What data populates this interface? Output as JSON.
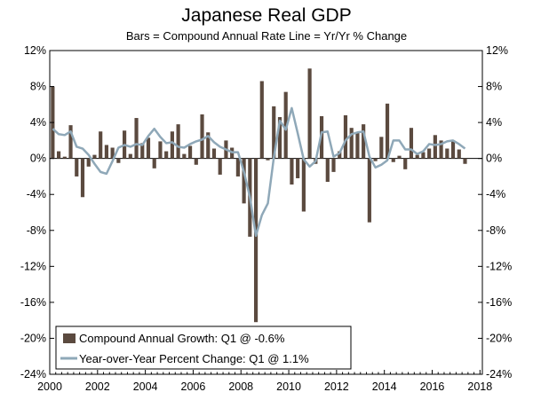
{
  "chart_data": {
    "type": "bar",
    "title": "Japanese Real GDP",
    "subtitle": "Bars = Compound Annual Rate     Line = Yr/Yr % Change",
    "ylim": [
      -24,
      12
    ],
    "y_ticks": [
      12,
      8,
      4,
      0,
      -4,
      -8,
      -12,
      -16,
      -20,
      -24
    ],
    "y_tick_labels": [
      "12%",
      "8%",
      "4%",
      "0%",
      "-4%",
      "-8%",
      "-12%",
      "-16%",
      "-20%",
      "-24%"
    ],
    "x_ticks": [
      2000,
      2002,
      2004,
      2006,
      2008,
      2010,
      2012,
      2014,
      2016,
      2018
    ],
    "x_tick_labels": [
      "2000",
      "2002",
      "2004",
      "2006",
      "2008",
      "2010",
      "2012",
      "2014",
      "2016",
      "2018"
    ],
    "x_range": [
      2000.0,
      2018.1
    ],
    "start_year": 2000,
    "legend_position": "bottom-left",
    "series": [
      {
        "name": "Compound Annual Growth: Q1 @ -0.6%",
        "kind": "bar",
        "color": "#5b4a3f",
        "values": [
          8.0,
          0.8,
          0.2,
          3.7,
          -2.0,
          -4.3,
          -0.9,
          0.4,
          3.0,
          1.5,
          1.2,
          -0.5,
          3.1,
          0.5,
          4.5,
          1.7,
          2.3,
          -1.1,
          1.9,
          0.8,
          3.0,
          3.8,
          0.5,
          1.4,
          -0.7,
          4.9,
          2.9,
          1.1,
          -1.8,
          2.0,
          1.2,
          -2.0,
          -5.0,
          -8.7,
          -18.2,
          8.6,
          -0.2,
          5.8,
          4.6,
          7.4,
          -2.9,
          -2.2,
          -5.9,
          10.0,
          -0.6,
          4.7,
          -2.6,
          -1.5,
          0.8,
          4.8,
          3.4,
          2.9,
          3.8,
          -7.1,
          -0.3,
          2.4,
          6.1,
          -0.4,
          0.3,
          -1.2,
          3.4,
          0.4,
          0.7,
          1.1,
          2.6,
          2.0,
          1.1,
          2.0,
          1.0,
          -0.6
        ]
      },
      {
        "name": "Year-over-Year Percent Change: Q1 @ 1.1%",
        "kind": "line",
        "color": "#8fa8b8",
        "values": [
          3.3,
          2.7,
          2.6,
          3.0,
          1.3,
          1.1,
          0.4,
          -0.6,
          -1.5,
          -1.7,
          -0.3,
          1.2,
          1.5,
          1.3,
          1.6,
          1.5,
          2.5,
          3.3,
          2.4,
          1.7,
          1.8,
          1.3,
          1.2,
          1.6,
          1.9,
          2.1,
          2.5,
          1.8,
          1.3,
          1.0,
          0.7,
          0.7,
          -1.5,
          -4.3,
          -8.6,
          -6.3,
          -5.0,
          0.1,
          4.2,
          3.2,
          5.6,
          2.8,
          -0.1,
          -0.9,
          -0.3,
          2.9,
          3.0,
          0.2,
          0.6,
          2.0,
          2.7,
          2.9,
          3.0,
          0.2,
          -1.0,
          -0.7,
          -0.2,
          2.0,
          2.0,
          1.0,
          1.0,
          0.5,
          0.8,
          1.6,
          1.5,
          1.6,
          1.9,
          2.0,
          1.6,
          1.1
        ]
      }
    ]
  }
}
